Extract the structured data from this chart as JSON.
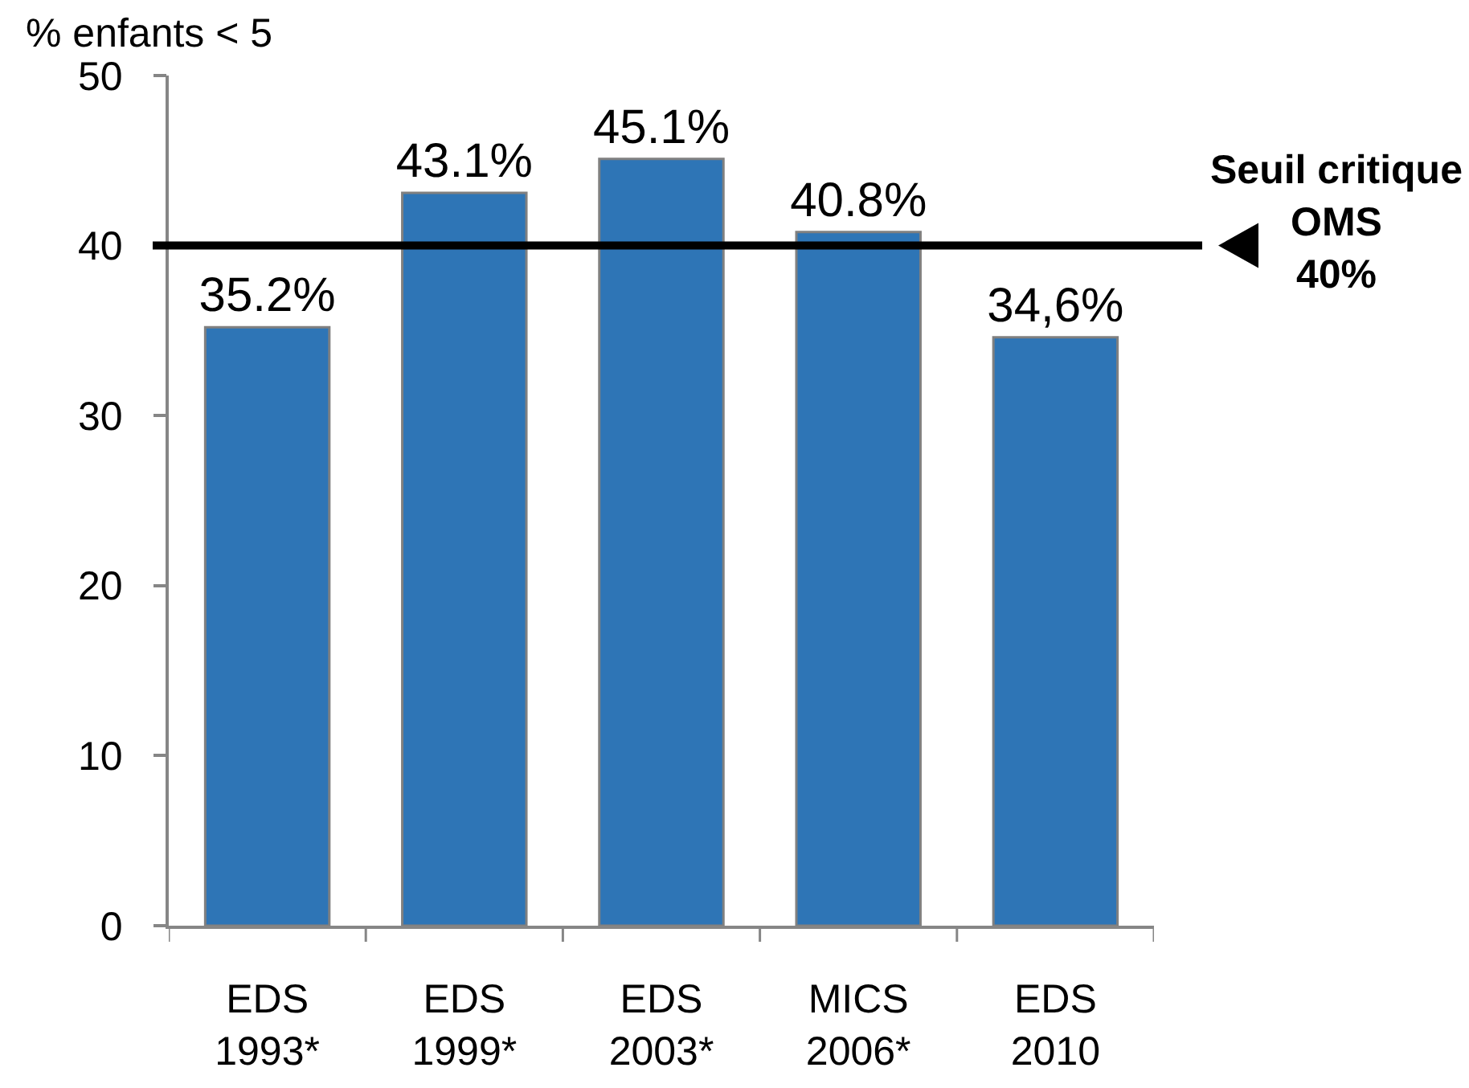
{
  "chart_data": {
    "type": "bar",
    "ylabel": "% enfants < 5",
    "categories": [
      "EDS\n1993*",
      "EDS\n1999*",
      "EDS\n2003*",
      "MICS\n2006*",
      "EDS\n2010"
    ],
    "values": [
      35.2,
      43.1,
      45.1,
      40.8,
      34.6
    ],
    "value_labels": [
      "35.2%",
      "43.1%",
      "45.1%",
      "40.8%",
      "34,6%"
    ],
    "color": "#2e75b6",
    "ylim": [
      0,
      50
    ],
    "yticks": [
      0,
      10,
      20,
      30,
      40,
      50
    ],
    "ref_lines": [
      {
        "axis": "y",
        "value": 40,
        "label": "Seuil critique\nOMS\n40%",
        "color": "#000000"
      }
    ]
  }
}
